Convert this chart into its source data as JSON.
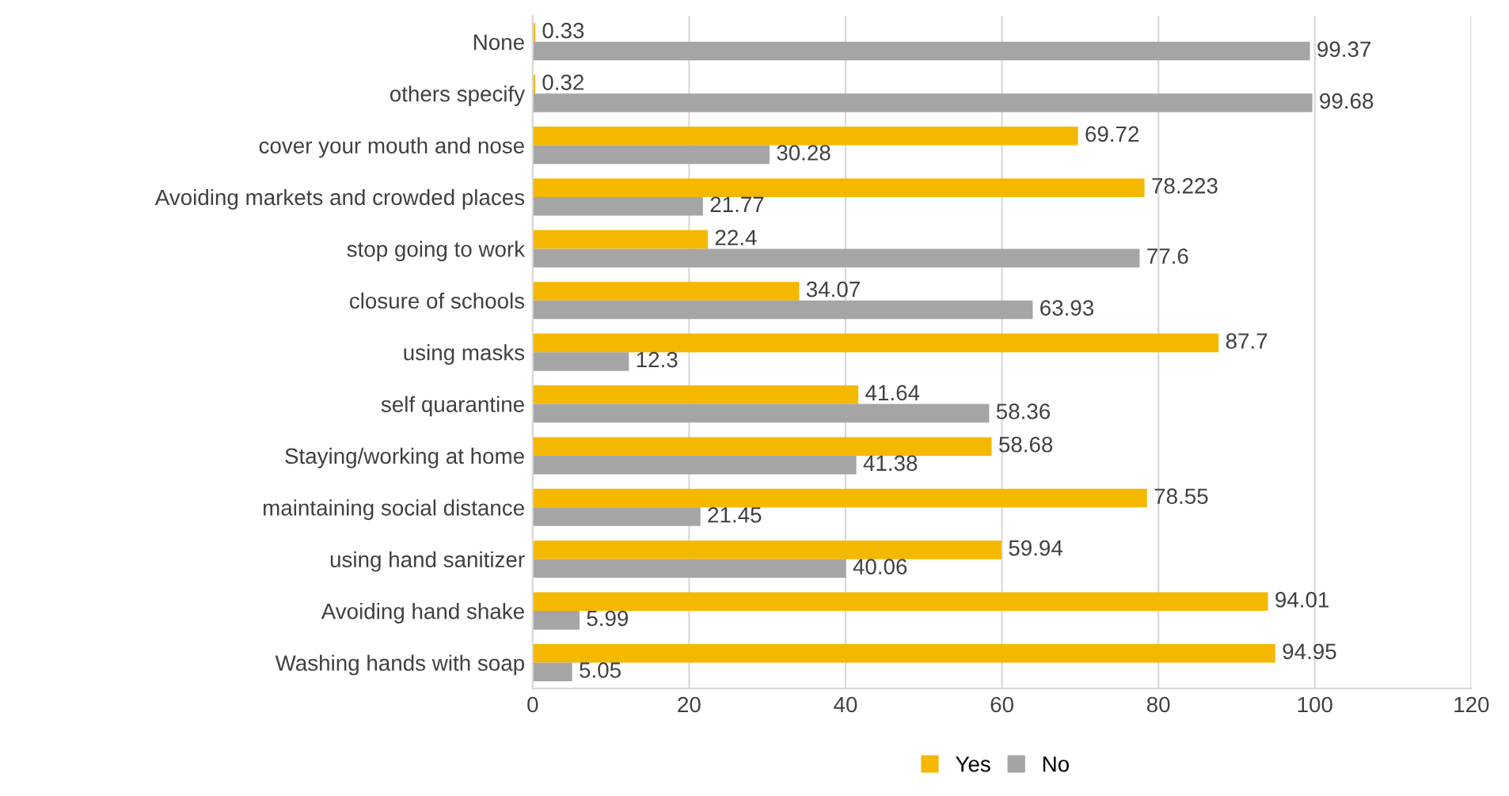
{
  "chart_data": {
    "type": "bar",
    "orientation": "horizontal",
    "categories": [
      "None",
      "others specify",
      "cover your mouth and nose",
      "Avoiding markets and crowded places",
      "stop going to work",
      "closure of schools",
      "using masks",
      "self quarantine",
      "Staying/working at home",
      "maintaining social distance",
      "using hand sanitizer",
      "Avoiding hand shake",
      "Washing hands with soap"
    ],
    "series": [
      {
        "name": "Yes",
        "color": "#f5b800",
        "values": [
          0.33,
          0.32,
          69.72,
          78.223,
          22.4,
          34.07,
          87.7,
          41.64,
          58.68,
          78.55,
          59.94,
          94.01,
          94.95
        ]
      },
      {
        "name": "No",
        "color": "#a5a5a5",
        "values": [
          99.37,
          99.68,
          30.28,
          21.77,
          77.6,
          63.93,
          12.3,
          58.36,
          41.38,
          21.45,
          40.06,
          5.99,
          5.05
        ]
      }
    ],
    "xlim": [
      0,
      120
    ],
    "xticks": [
      0,
      20,
      40,
      60,
      80,
      100,
      120
    ],
    "grid": "x",
    "legend": "bottom",
    "data_labels": true
  }
}
